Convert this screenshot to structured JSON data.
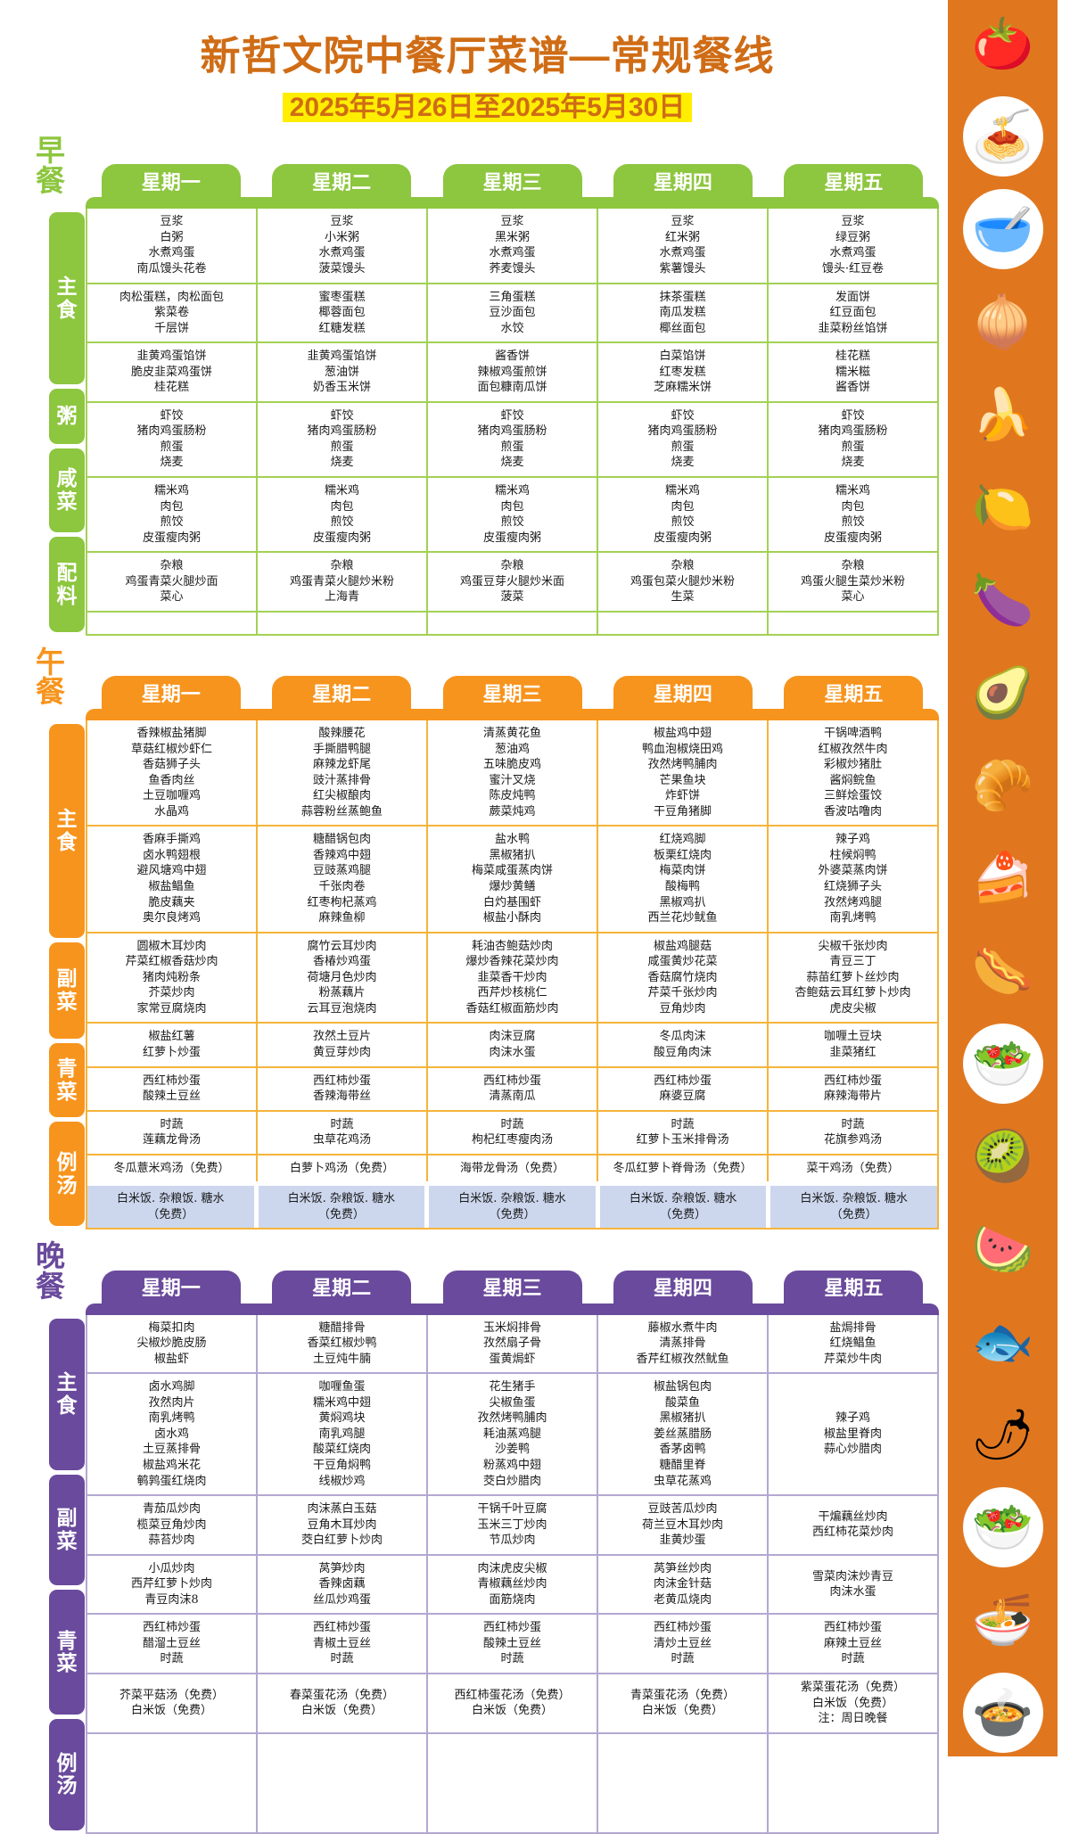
{
  "title": "新哲文院中餐厅菜谱—常规餐线",
  "date_range": "2025年5月26日至2025年5月30日",
  "days": [
    "星期一",
    "星期二",
    "星期三",
    "星期四",
    "星期五"
  ],
  "colors": {
    "title_orange": "#cf6c15",
    "date_highlight": "#ffee00",
    "free_row_bg": "#ccd7ee",
    "strip_bg": "#e0771f"
  },
  "sections": [
    {
      "id": "breakfast",
      "label": "早餐",
      "color": "#8dc63f",
      "border_color": "#a3d155",
      "row_labels": [
        "主食",
        "粥",
        "咸菜",
        "配料"
      ],
      "rows": [
        {
          "cells": [
            "豆浆\n白粥\n水煮鸡蛋\n南瓜馒头花卷",
            "豆浆\n小米粥\n水煮鸡蛋\n菠菜馒头",
            "豆浆\n黑米粥\n水煮鸡蛋\n荞麦馒头",
            "豆浆\n红米粥\n水煮鸡蛋\n紫薯馒头",
            "豆浆\n绿豆粥\n水煮鸡蛋\n馒头·红豆卷"
          ]
        },
        {
          "cells": [
            "肉松蛋糕，肉松面包\n紫菜卷\n千层饼",
            "蜜枣蛋糕\n椰蓉面包\n红糖发糕",
            "三角蛋糕\n豆沙面包\n水饺",
            "抹茶蛋糕\n南瓜发糕\n椰丝面包",
            "发面饼\n红豆面包\n韭菜粉丝馅饼"
          ]
        },
        {
          "cells": [
            "韭黄鸡蛋馅饼\n脆皮韭菜鸡蛋饼\n桂花糕",
            "韭黄鸡蛋馅饼\n葱油饼\n奶香玉米饼",
            "酱香饼\n辣椒鸡蛋煎饼\n面包糠南瓜饼",
            "白菜馅饼\n红枣发糕\n芝麻糯米饼",
            "桂花糕\n糯米糍\n酱香饼"
          ]
        },
        {
          "cells": [
            "虾饺\n猪肉鸡蛋肠粉\n煎蛋\n烧麦",
            "虾饺\n猪肉鸡蛋肠粉\n煎蛋\n烧麦",
            "虾饺\n猪肉鸡蛋肠粉\n煎蛋\n烧麦",
            "虾饺\n猪肉鸡蛋肠粉\n煎蛋\n烧麦",
            "虾饺\n猪肉鸡蛋肠粉\n煎蛋\n烧麦"
          ]
        },
        {
          "cells": [
            "糯米鸡\n肉包\n煎饺\n皮蛋瘦肉粥",
            "糯米鸡\n肉包\n煎饺\n皮蛋瘦肉粥",
            "糯米鸡\n肉包\n煎饺\n皮蛋瘦肉粥",
            "糯米鸡\n肉包\n煎饺\n皮蛋瘦肉粥",
            "糯米鸡\n肉包\n煎饺\n皮蛋瘦肉粥"
          ]
        },
        {
          "cells": [
            "杂粮\n鸡蛋青菜火腿炒面\n菜心",
            "杂粮\n鸡蛋青菜火腿炒米粉\n上海青",
            "杂粮\n鸡蛋豆芽火腿炒米面\n菠菜",
            "杂粮\n鸡蛋包菜火腿炒米粉\n生菜",
            "杂粮\n鸡蛋火腿生菜炒米粉\n菜心"
          ]
        },
        {
          "cells": [
            "",
            "",
            "",
            "",
            ""
          ]
        }
      ]
    },
    {
      "id": "lunch",
      "label": "午餐",
      "color": "#f7941d",
      "border_color": "#f5b43a",
      "row_labels": [
        "主食",
        "副菜",
        "青菜",
        "例汤"
      ],
      "rows": [
        {
          "cells": [
            "香辣椒盐猪脚\n草菇红椒炒虾仁\n香菇狮子头\n鱼香肉丝\n土豆咖喱鸡\n水晶鸡",
            "酸辣腰花\n手撕腊鸭腿\n麻辣龙虾尾\n豉汁蒸排骨\n红尖椒酿肉\n蒜蓉粉丝蒸鲍鱼",
            "清蒸黄花鱼\n葱油鸡\n五味脆皮鸡\n蜜汁叉烧\n陈皮炖鸭\n蕨菜炖鸡",
            "椒盐鸡中翅\n鸭血泡椒烧田鸡\n孜然烤鸭脯肉\n芒果鱼块\n炸虾饼\n干豆角猪脚",
            "干锅啤酒鸭\n红椒孜然牛肉\n彩椒炒猪肚\n酱焖鲩鱼\n三鲜烩蛋饺\n香波咕噜肉"
          ]
        },
        {
          "cells": [
            "香麻手撕鸡\n卤水鸭翅根\n避风塘鸡中翅\n椒盐鲳鱼\n脆皮藕夹\n奥尔良烤鸡",
            "糖醋锅包肉\n香辣鸡中翅\n豆豉蒸鸡腿\n千张肉卷\n红枣枸杞蒸鸡\n麻辣鱼柳",
            "盐水鸭\n黑椒猪扒\n梅菜咸蛋蒸肉饼\n爆炒黄鳝\n白灼基围虾\n椒盐小酥肉",
            "红烧鸡脚\n板栗红烧肉\n梅菜肉饼\n酸梅鸭\n黑椒鸡扒\n西兰花炒鱿鱼",
            "辣子鸡\n柱候焖鸭\n外婆菜蒸肉饼\n红烧狮子头\n孜然烤鸡腿\n南乳烤鸭"
          ]
        },
        {
          "cells": [
            "圆椒木耳炒肉\n芹菜红椒香菇炒肉\n猪肉炖粉条\n芥菜炒肉\n家常豆腐烧肉",
            "腐竹云耳炒肉\n香椿炒鸡蛋\n荷塘月色炒肉\n粉蒸藕片\n云耳豆泡烧肉",
            "耗油杏鲍菇炒肉\n爆炒香辣花菜炒肉\n韭菜香干炒肉\n西芹炒核桃仁\n香菇红椒面筋炒肉",
            "椒盐鸡腿菇\n咸蛋黄炒花菜\n香菇腐竹烧肉\n芹菜千张炒肉\n豆角炒肉",
            "尖椒千张炒肉\n青豆三丁\n蒜苗红萝卜丝炒肉\n杏鲍菇云耳红萝卜炒肉\n虎皮尖椒"
          ]
        },
        {
          "cells": [
            "椒盐红薯\n红萝卜炒蛋",
            "孜然土豆片\n黄豆芽炒肉",
            "肉沫豆腐\n肉沫水蛋",
            "冬瓜肉沫\n酸豆角肉沫",
            "咖喱土豆块\n韭菜猪红"
          ]
        },
        {
          "cells": [
            "西红柿炒蛋\n酸辣土豆丝",
            "西红柿炒蛋\n香辣海带丝",
            "西红柿炒蛋\n清蒸南瓜",
            "西红柿炒蛋\n麻婆豆腐",
            "西红柿炒蛋\n麻辣海带片"
          ]
        },
        {
          "cells": [
            "时蔬\n莲藕龙骨汤",
            "时蔬\n虫草花鸡汤",
            "时蔬\n枸杞红枣瘦肉汤",
            "时蔬\n红萝卜玉米排骨汤",
            "时蔬\n花旗参鸡汤"
          ]
        },
        {
          "cells": [
            "冬瓜薏米鸡汤（免费）",
            "白萝卜鸡汤（免费）",
            "海带龙骨汤（免费）",
            "冬瓜红萝卜脊骨汤（免费）",
            "菜干鸡汤（免费）"
          ]
        },
        {
          "free": true,
          "cells": [
            "白米饭. 杂粮饭. 糖水\n（免费）",
            "白米饭. 杂粮饭. 糖水\n（免费）",
            "白米饭. 杂粮饭. 糖水\n（免费）",
            "白米饭. 杂粮饭. 糖水\n（免费）",
            "白米饭. 杂粮饭. 糖水\n（免费）"
          ]
        }
      ]
    },
    {
      "id": "dinner",
      "label": "晚餐",
      "color": "#6a4a9c",
      "border_color": "#b4a8d2",
      "row_labels": [
        "主食",
        "副菜",
        "青菜",
        "例汤"
      ],
      "rows": [
        {
          "cells": [
            "梅菜扣肉\n尖椒炒脆皮肠\n椒盐虾",
            "糖醋排骨\n香菜红椒炒鸭\n土豆炖牛腩",
            "玉米焖排骨\n孜然扇子骨\n蛋黄焗虾",
            "藤椒水煮牛肉\n清蒸排骨\n香芹红椒孜然鱿鱼",
            "盐焗排骨\n红烧鲳鱼\n芹菜炒牛肉"
          ]
        },
        {
          "cells": [
            "卤水鸡脚\n孜然肉片\n南乳烤鸭\n卤水鸡\n土豆蒸排骨\n椒盐鸡米花\n鹌鹑蛋红烧肉",
            "咖喱鱼蛋\n糯米鸡中翅\n黄焖鸡块\n南乳鸡腿\n酸菜红烧肉\n干豆角焖鸭\n线椒炒鸡",
            "花生猪手\n尖椒鱼蛋\n孜然烤鸭脯肉\n耗油蒸鸡腿\n沙姜鸭\n粉蒸鸡中翅\n茭白炒腊肉",
            "椒盐锅包肉\n酸菜鱼\n黑椒猪扒\n姜丝蒸腊肠\n香茅卤鸭\n糖醋里脊\n虫草花蒸鸡",
            "辣子鸡\n椒盐里脊肉\n蒜心炒腊肉"
          ]
        },
        {
          "cells": [
            "青茄瓜炒肉\n榄菜豆角炒肉\n蒜苔炒肉",
            "肉沫蒸白玉菇\n豆角木耳炒肉\n茭白红萝卜炒肉",
            "干锅千叶豆腐\n玉米三丁炒肉\n节瓜炒肉",
            "豆豉苦瓜炒肉\n荷兰豆木耳炒肉\n韭黄炒蛋",
            "干煸藕丝炒肉\n西红柿花菜炒肉"
          ]
        },
        {
          "cells": [
            "小瓜炒肉\n西芹红萝卜炒肉\n青豆肉沫8",
            "莴笋炒肉\n香辣卤藕\n丝瓜炒鸡蛋",
            "肉沫虎皮尖椒\n青椒藕丝炒肉\n面筋烧肉",
            "莴笋丝炒肉\n肉沫金针菇\n老黄瓜烧肉",
            "雪菜肉沫炒青豆\n肉沫水蛋"
          ]
        },
        {
          "cells": [
            "西红柿炒蛋\n醋溜土豆丝\n时蔬",
            "西红柿炒蛋\n青椒土豆丝\n时蔬",
            "西红柿炒蛋\n酸辣土豆丝\n时蔬",
            "西红柿炒蛋\n清炒土豆丝\n时蔬",
            "西红柿炒蛋\n麻辣土豆丝\n时蔬"
          ]
        },
        {
          "cells": [
            "芥菜平菇汤（免费）\n白米饭（免费）",
            "春菜蛋花汤（免费）\n白米饭（免费）",
            "西红柿蛋花汤（免费）\n白米饭（免费）",
            "青菜蛋花汤（免费）\n白米饭（免费）",
            "紫菜蛋花汤（免费）\n白米饭（免费）\n注：周日晚餐"
          ]
        },
        {
          "cells": [
            "",
            "",
            "",
            "",
            ""
          ]
        }
      ]
    }
  ],
  "side_icons": [
    {
      "name": "tomato-icon",
      "glyph": "🍅",
      "plate": false
    },
    {
      "name": "food-plate-icon",
      "glyph": "🍝",
      "plate": true
    },
    {
      "name": "snack-bowl-icon",
      "glyph": "🥣",
      "plate": true
    },
    {
      "name": "radish-icon",
      "glyph": "🧅",
      "plate": false
    },
    {
      "name": "banana-icon",
      "glyph": "🍌",
      "plate": false
    },
    {
      "name": "lemon-icon",
      "glyph": "🍋",
      "plate": false
    },
    {
      "name": "eggplant-icon",
      "glyph": "🍆",
      "plate": false
    },
    {
      "name": "avocado-icon",
      "glyph": "🥑",
      "plate": false
    },
    {
      "name": "croissant-icon",
      "glyph": "🥐",
      "plate": false
    },
    {
      "name": "cake-icon",
      "glyph": "🍰",
      "plate": false
    },
    {
      "name": "hotdog-icon",
      "glyph": "🌭",
      "plate": false
    },
    {
      "name": "salad-bowl-icon",
      "glyph": "🥗",
      "plate": true
    },
    {
      "name": "kiwi-icon",
      "glyph": "🥝",
      "plate": false
    },
    {
      "name": "watermelon-icon",
      "glyph": "🍉",
      "plate": false
    },
    {
      "name": "fish-icon",
      "glyph": "🐟",
      "plate": false
    },
    {
      "name": "chili-icon",
      "glyph": "🌶",
      "plate": false
    },
    {
      "name": "salad-plate-icon",
      "glyph": "🥗",
      "plate": true
    },
    {
      "name": "noodles-fork-icon",
      "glyph": "🍜",
      "plate": false
    },
    {
      "name": "cloche-icon",
      "glyph": "🍲",
      "plate": true
    }
  ]
}
